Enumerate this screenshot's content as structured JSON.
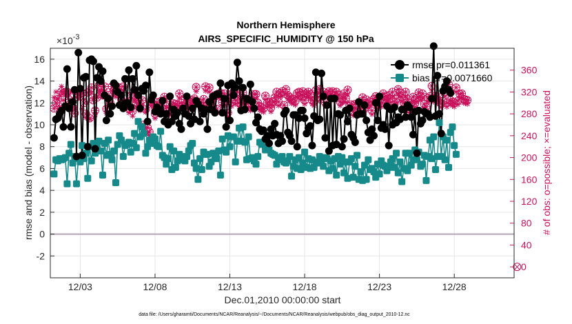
{
  "chart_data": {
    "type": "line",
    "title": [
      "Northern Hemisphere",
      "AIRS_SPECIFIC_HUMIDITY @ 150 hPa"
    ],
    "xlabel": "Dec.01,2010 00:00:00 start",
    "ylabel": "rmse and bias (model - observation)",
    "ylabel_right": "# of obs: o=possible; ×=evaluated",
    "exponent_label": "×10",
    "exponent_power": "-3",
    "ylim": [
      -4,
      17
    ],
    "yticks": [
      "-2",
      "0",
      "2",
      "4",
      "6",
      "8",
      "10",
      "12",
      "14",
      "16"
    ],
    "ylim_right": [
      -20,
      400
    ],
    "yticks_right": [
      "0",
      "40",
      "80",
      "120",
      "160",
      "200",
      "240",
      "280",
      "320",
      "360"
    ],
    "xlim": [
      1,
      32
    ],
    "xticks": [
      {
        "v": 3,
        "label": "12/03"
      },
      {
        "v": 8,
        "label": "12/08"
      },
      {
        "v": 13,
        "label": "12/13"
      },
      {
        "v": 18,
        "label": "12/18"
      },
      {
        "v": 23,
        "label": "12/23"
      },
      {
        "v": 28,
        "label": "12/28"
      }
    ],
    "zero_line": 0,
    "footer": "data file: /Users/gharamti/Documents/NCAR/Reanalysis/~/Documents/NCAR/Reanalysis/webpub/obs_diag_output_2010-12.nc",
    "colors": {
      "rmse": "#000000",
      "bias": "#16898a",
      "obs": "#c8105a",
      "grid": "#e6e6e6",
      "zero": "#b3a4b3"
    },
    "series": [
      {
        "name": "rmse",
        "legend": "rmse pr=0.011361",
        "start_day": 1.25,
        "step_day": 0.125,
        "values": [
          8.8,
          10.5,
          10.6,
          11.0,
          11.3,
          9.8,
          11.7,
          15.1,
          11.5,
          9.8,
          12.1,
          13.2,
          7.1,
          16.6,
          13.3,
          7.2,
          14.3,
          14.4,
          8.0,
          15.9,
          16.0,
          15.8,
          7.8,
          14.3,
          15.3,
          14.0,
          14.9,
          12.7,
          10.4,
          12.4,
          11.0,
          11.7,
          13.8,
          13.6,
          13.0,
          11.8,
          12.7,
          11.5,
          14.2,
          12.0,
          15.0,
          11.6,
          14.2,
          13.2,
          15.4,
          12.7,
          11.5,
          13.3,
          13.1,
          13.6,
          10.3,
          14.8,
          12.3,
          12.7,
          11.2,
          11.6,
          11.4,
          11.0,
          12.2,
          10.3,
          11.0,
          10.0,
          12.6,
          10.3,
          11.4,
          10.8,
          11.1,
          10.1,
          9.6,
          11.5,
          11.0,
          12.6,
          10.8,
          10.1,
          11.5,
          10.5,
          12.2,
          11.9,
          10.3,
          11.5,
          11.0,
          11.4,
          9.6,
          12.1,
          11.4,
          12.6,
          11.1,
          12.8,
          12.8,
          13.8,
          11.1,
          12.4,
          9.8,
          13.6,
          10.4,
          13.8,
          12.7,
          13.4,
          15.7,
          14.0,
          11.3,
          13.4,
          11.4,
          12.4,
          12.3,
          13.7,
          12.1,
          11.5,
          10.2,
          10.7,
          9.6,
          9.4,
          9.5,
          8.7,
          9.0,
          8.3,
          9.6,
          9.0,
          10.1,
          9.1,
          8.3,
          9.0,
          8.5,
          11.0,
          11.3,
          9.3,
          9.0,
          8.5,
          10.9,
          10.9,
          8.0,
          10.6,
          11.3,
          11.3,
          10.6,
          9.2,
          9.7,
          9.9,
          8.1,
          10.8,
          14.8,
          10.4,
          10.5,
          14.7,
          12.6,
          8.8,
          11.8,
          7.6,
          12.4,
          8.1,
          12.4,
          8.2,
          11.0,
          10.9,
          8.0,
          8.7,
          11.3,
          10.3,
          11.5,
          9.1,
          8.8,
          8.4,
          10.9,
          12.1,
          11.0,
          11.0,
          11.8,
          10.4,
          9.3,
          8.6,
          9.6,
          9.0,
          12.0,
          10.4,
          12.6,
          9.7,
          10.0,
          9.6,
          11.7,
          8.1,
          11.4,
          10.0,
          11.6,
          10.2,
          10.7,
          10.5,
          11.4,
          11.4,
          10.7,
          11.8,
          11.6,
          10.7,
          9.1,
          11.2,
          7.4,
          11.3,
          10.1,
          10.4,
          11.2,
          11.0,
          11.0,
          10.7,
          12.4,
          17.2,
          10.8,
          14.5,
          11.0,
          9.2,
          13.1,
          13.5,
          14.0,
          13.2,
          12.9
        ]
      },
      {
        "name": "bias",
        "legend": "bias pr=0.0071660",
        "start_day": 1.25,
        "step_day": 0.125,
        "values": [
          5.5,
          6.8,
          6.7,
          6.9,
          6.8,
          6.9,
          7.0,
          4.6,
          7.4,
          8.2,
          6.5,
          7.1,
          4.6,
          6.9,
          6.6,
          8.1,
          6.9,
          7.4,
          5.1,
          8.0,
          6.7,
          8.3,
          7.4,
          8.1,
          8.5,
          7.6,
          5.4,
          8.3,
          7.2,
          8.6,
          7.3,
          6.8,
          7.6,
          4.7,
          8.2,
          9.0,
          8.6,
          7.1,
          8.1,
          8.2,
          8.4,
          7.5,
          8.3,
          9.2,
          7.9,
          10.3,
          8.9,
          9.8,
          9.2,
          7.4,
          8.0,
          8.6,
          8.3,
          8.9,
          8.7,
          8.1,
          8.0,
          9.4,
          7.2,
          7.0,
          6.4,
          6.9,
          8.0,
          5.9,
          7.6,
          6.1,
          6.7,
          7.3,
          6.8,
          7.1,
          6.7,
          7.1,
          7.6,
          8.1,
          8.3,
          6.5,
          6.0,
          5.0,
          6.9,
          5.9,
          7.5,
          7.3,
          7.3,
          6.2,
          6.6,
          7.4,
          7.2,
          6.9,
          7.6,
          5.4,
          8.7,
          7.7,
          7.5,
          9.0,
          8.0,
          8.9,
          8.9,
          6.6,
          8.5,
          9.7,
          8.5,
          9.8,
          8.4,
          6.8,
          8.9,
          6.9,
          7.0,
          6.7,
          6.4,
          7.1,
          8.4,
          8.2,
          8.2,
          7.7,
          7.7,
          7.7,
          7.4,
          7.3,
          7.2,
          6.4,
          7.0,
          6.8,
          7.1,
          6.6,
          6.5,
          6.7,
          7.1,
          5.3,
          6.2,
          6.8,
          6.0,
          7.0,
          5.9,
          6.5,
          7.5,
          6.1,
          6.9,
          6.0,
          6.8,
          6.1,
          6.6,
          6.5,
          7.1,
          6.8,
          6.2,
          7.0,
          6.9,
          5.8,
          6.7,
          6.0,
          6.9,
          5.4,
          7.1,
          6.4,
          7.0,
          5.6,
          6.6,
          5.1,
          6.6,
          6.9,
          5.2,
          6.2,
          7.2,
          5.0,
          5.7,
          4.9,
          6.3,
          5.0,
          6.8,
          5.9,
          6.0,
          5.7,
          5.2,
          6.4,
          5.5,
          6.7,
          6.3,
          6.2,
          5.8,
          6.1,
          6.6,
          6.9,
          6.1,
          7.4,
          5.6,
          6.6,
          4.8,
          6.0,
          7.4,
          5.8,
          7.4,
          6.3,
          6.8,
          7.7,
          6.8,
          7.5,
          6.2,
          6.4,
          7.2,
          4.9,
          7.1,
          8.6,
          6.9,
          8.9,
          5.9,
          7.1,
          10.2,
          7.1,
          8.9,
          6.8,
          8.6,
          6.1,
          9.3,
          9.8,
          8.1,
          7.3
        ]
      },
      {
        "name": "obs_possible",
        "axis": "right",
        "start_day": 1.25,
        "step_day": 0.125,
        "values": [
          290,
          300,
          307,
          293,
          321,
          318,
          320,
          320,
          306,
          296,
          292,
          281,
          318,
          315,
          312,
          318,
          300,
          280,
          319,
          272,
          328,
          305,
          286,
          310,
          332,
          323,
          314,
          330,
          289,
          314,
          300,
          330,
          322,
          317,
          329,
          320,
          306,
          330,
          300,
          298,
          290,
          313,
          285,
          313,
          301,
          305,
          294,
          305,
          260,
          288,
          255,
          247,
          301,
          298,
          280,
          301,
          291,
          303,
          289,
          311,
          302,
          285,
          286,
          295,
          299,
          298,
          296,
          317,
          300,
          295,
          306,
          289,
          304,
          300,
          305,
          308,
          329,
          302,
          301,
          291,
          307,
          330,
          296,
          328,
          300,
          311,
          314,
          289,
          317,
          318,
          301,
          317,
          303,
          282,
          315,
          301,
          320,
          305,
          320,
          300,
          305,
          319,
          304,
          307,
          300,
          293,
          305,
          316,
          316,
          300,
          294,
          292,
          290,
          313,
          300,
          302,
          291,
          302,
          310,
          320,
          302,
          318,
          321,
          296,
          325,
          314,
          311,
          306,
          307,
          303,
          318,
          320,
          314,
          321,
          305,
          317,
          320,
          316,
          305,
          303,
          323,
          310,
          325,
          316,
          320,
          301,
          317,
          321,
          315,
          321,
          313,
          320,
          315,
          302,
          308,
          317,
          308,
          324,
          294,
          297,
          284,
          298,
          283,
          293,
          300,
          310,
          290,
          306,
          298,
          302,
          286,
          307,
          312,
          297,
          305,
          300,
          317,
          306,
          312,
          314,
          308,
          320,
          297,
          307,
          325,
          319,
          310,
          300,
          320,
          307,
          289,
          300,
          311,
          299,
          309,
          319,
          312,
          317,
          298,
          293,
          309,
          312,
          331,
          309,
          313,
          306,
          310,
          299,
          303,
          320,
          300,
          334,
          305,
          302,
          300,
          328,
          304,
          316,
          317,
          307,
          306,
          305
        ]
      },
      {
        "name": "obs_evaluated",
        "axis": "right",
        "start_day": 1.25,
        "step_day": 0.125,
        "values": [
          310,
          320,
          308,
          314,
          330,
          305,
          321,
          312,
          316,
          320,
          301,
          288,
          318,
          308,
          318,
          289,
          306,
          273,
          280,
          270,
          318,
          308,
          278,
          312,
          322,
          322,
          311,
          322,
          281,
          310,
          295,
          322,
          315,
          311,
          319,
          313,
          299,
          322,
          290,
          290,
          282,
          307,
          276,
          304,
          293,
          295,
          286,
          297,
          253,
          283,
          245,
          240,
          295,
          289,
          272,
          295,
          283,
          297,
          281,
          303,
          293,
          279,
          278,
          288,
          291,
          290,
          289,
          309,
          293,
          288,
          299,
          282,
          296,
          292,
          297,
          301,
          321,
          295,
          294,
          283,
          300,
          322,
          290,
          320,
          293,
          303,
          306,
          282,
          309,
          311,
          294,
          309,
          296,
          275,
          308,
          294,
          312,
          298,
          312,
          293,
          298,
          312,
          296,
          300,
          292,
          286,
          298,
          308,
          308,
          292,
          287,
          285,
          283,
          306,
          293,
          295,
          284,
          295,
          302,
          313,
          295,
          311,
          313,
          289,
          317,
          307,
          304,
          299,
          299,
          296,
          311,
          312,
          306,
          314,
          298,
          310,
          312,
          308,
          298,
          295,
          315,
          303,
          318,
          308,
          312,
          294,
          310,
          313,
          308,
          314,
          305,
          312,
          308,
          295,
          300,
          309,
          301,
          316,
          287,
          290,
          277,
          290,
          276,
          286,
          293,
          303,
          283,
          299,
          291,
          295,
          279,
          299,
          304,
          290,
          297,
          293,
          309,
          299,
          304,
          307,
          301,
          312,
          290,
          300,
          317,
          312,
          303,
          293,
          312,
          299,
          282,
          293,
          303,
          292,
          302,
          311,
          305,
          309,
          291,
          286,
          302,
          305,
          323,
          302,
          306,
          299,
          303,
          292,
          296,
          312,
          293,
          326,
          298,
          295,
          293,
          320,
          297,
          309,
          309,
          300,
          299,
          298
        ]
      }
    ],
    "obs_marker_at_zero": {
      "day": 32.2,
      "value": 0
    }
  }
}
